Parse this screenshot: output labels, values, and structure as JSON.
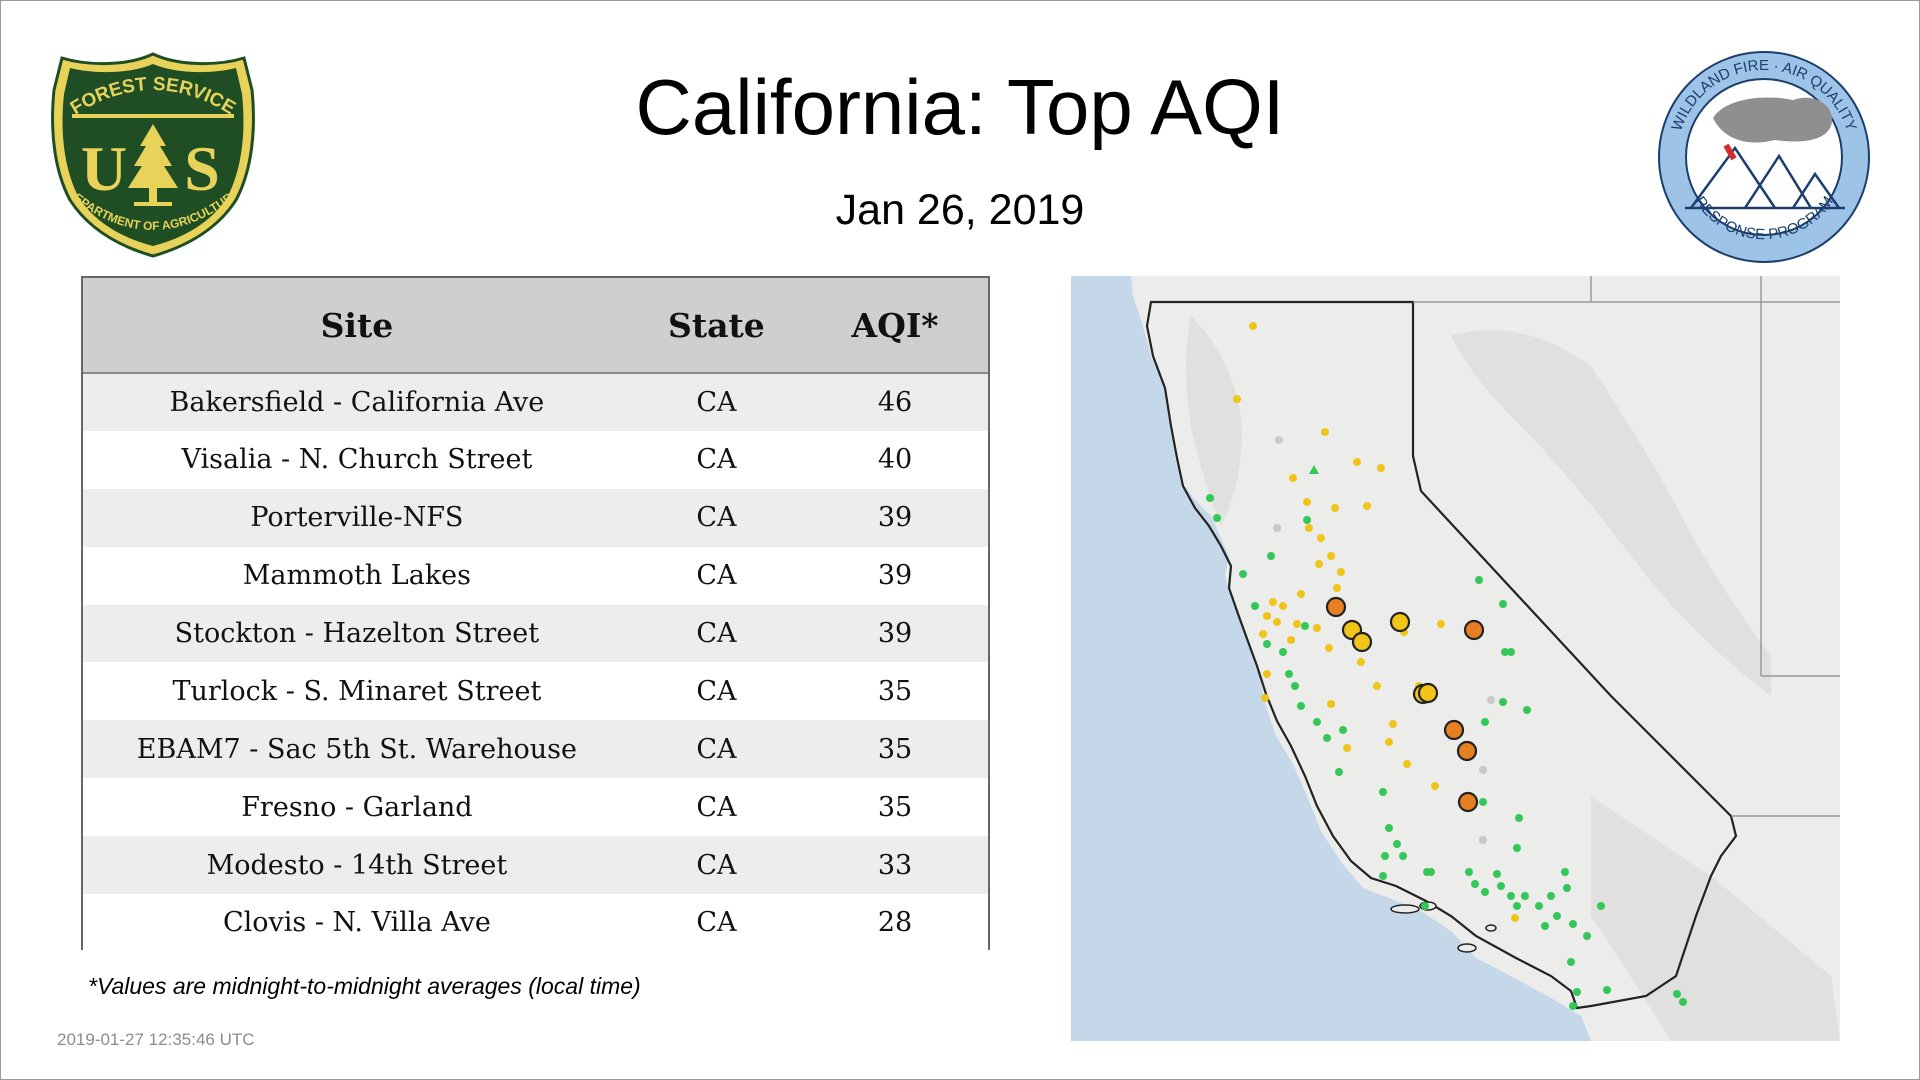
{
  "header": {
    "title": "California: Top AQI",
    "date": "Jan 26, 2019"
  },
  "logos": {
    "usfs": {
      "top_text": "FOREST SERVICE",
      "letters_left": "U",
      "letters_right": "S",
      "bottom_text": "DEPARTMENT OF AGRICULTURE",
      "colors": {
        "green": "#1f4e24",
        "gold": "#e8d25a"
      }
    },
    "wfaq": {
      "top_text": "WILDLAND FIRE · AIR QUALITY",
      "bottom_text": "RESPONSE PROGRAM",
      "colors": {
        "ring": "#9dc3e6",
        "outline": "#1c3e6e"
      }
    }
  },
  "table": {
    "columns": [
      "Site",
      "State",
      "AQI*"
    ],
    "rows": [
      [
        "Bakersfield - California Ave",
        "CA",
        "46"
      ],
      [
        "Visalia - N. Church Street",
        "CA",
        "40"
      ],
      [
        "Porterville-NFS",
        "CA",
        "39"
      ],
      [
        "Mammoth Lakes",
        "CA",
        "39"
      ],
      [
        "Stockton - Hazelton Street",
        "CA",
        "39"
      ],
      [
        "Turlock - S. Minaret Street",
        "CA",
        "35"
      ],
      [
        "EBAM7 - Sac 5th St. Warehouse",
        "CA",
        "35"
      ],
      [
        "Fresno - Garland",
        "CA",
        "35"
      ],
      [
        "Modesto - 14th Street",
        "CA",
        "33"
      ],
      [
        "Clovis - N. Villa Ave",
        "CA",
        "28"
      ]
    ]
  },
  "footnote": "*Values are midnight-to-midnight averages (local time)",
  "timestamp": "2019-01-27 12:35:46 UTC",
  "map": {
    "region": "California",
    "colors": {
      "ocean": "#c4d8ea",
      "land": "#ececea",
      "good": "#35c75a",
      "moderate": "#f0c419",
      "orange": "#e67e22",
      "no_data": "#c9c9c9"
    }
  }
}
